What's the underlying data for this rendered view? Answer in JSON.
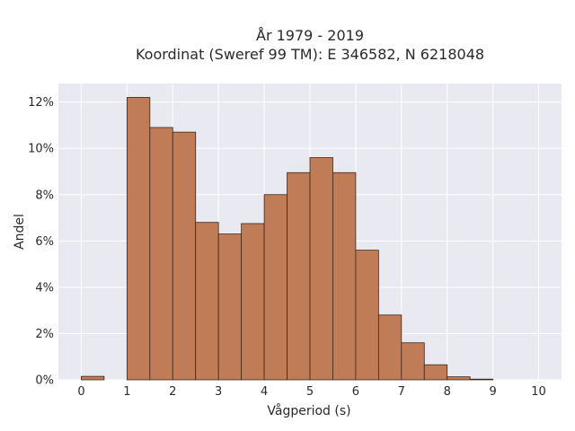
{
  "chart_data": {
    "type": "bar",
    "title_line1": "År 1979 - 2019",
    "title_line2": "Koordinat (Sweref 99 TM): E 346582, N 6218048",
    "xlabel": "Vågperiod (s)",
    "ylabel": "Andel",
    "bin_width": 0.5,
    "bins": [
      {
        "start": 0.0,
        "value": 0.15
      },
      {
        "start": 0.5,
        "value": 0.0
      },
      {
        "start": 1.0,
        "value": 12.2
      },
      {
        "start": 1.5,
        "value": 10.9
      },
      {
        "start": 2.0,
        "value": 10.7
      },
      {
        "start": 2.5,
        "value": 6.8
      },
      {
        "start": 3.0,
        "value": 6.3
      },
      {
        "start": 3.5,
        "value": 6.75
      },
      {
        "start": 4.0,
        "value": 8.0
      },
      {
        "start": 4.5,
        "value": 8.95
      },
      {
        "start": 5.0,
        "value": 9.6
      },
      {
        "start": 5.5,
        "value": 8.95
      },
      {
        "start": 6.0,
        "value": 5.6
      },
      {
        "start": 6.5,
        "value": 2.8
      },
      {
        "start": 7.0,
        "value": 1.6
      },
      {
        "start": 7.5,
        "value": 0.65
      },
      {
        "start": 8.0,
        "value": 0.13
      },
      {
        "start": 8.5,
        "value": 0.03
      }
    ],
    "xlim": [
      -0.5,
      10.5
    ],
    "ylim": [
      0,
      12.8
    ],
    "x_ticks": [
      0,
      1,
      2,
      3,
      4,
      5,
      6,
      7,
      8,
      9,
      10
    ],
    "y_ticks": [
      0,
      2,
      4,
      6,
      8,
      10,
      12
    ],
    "y_tick_suffix": "%",
    "grid": true,
    "colors": {
      "bar_fill": "#bf7c57",
      "bar_stroke": "#3d2718",
      "plot_bg": "#e9e9f2",
      "grid": "#ffffff"
    }
  }
}
